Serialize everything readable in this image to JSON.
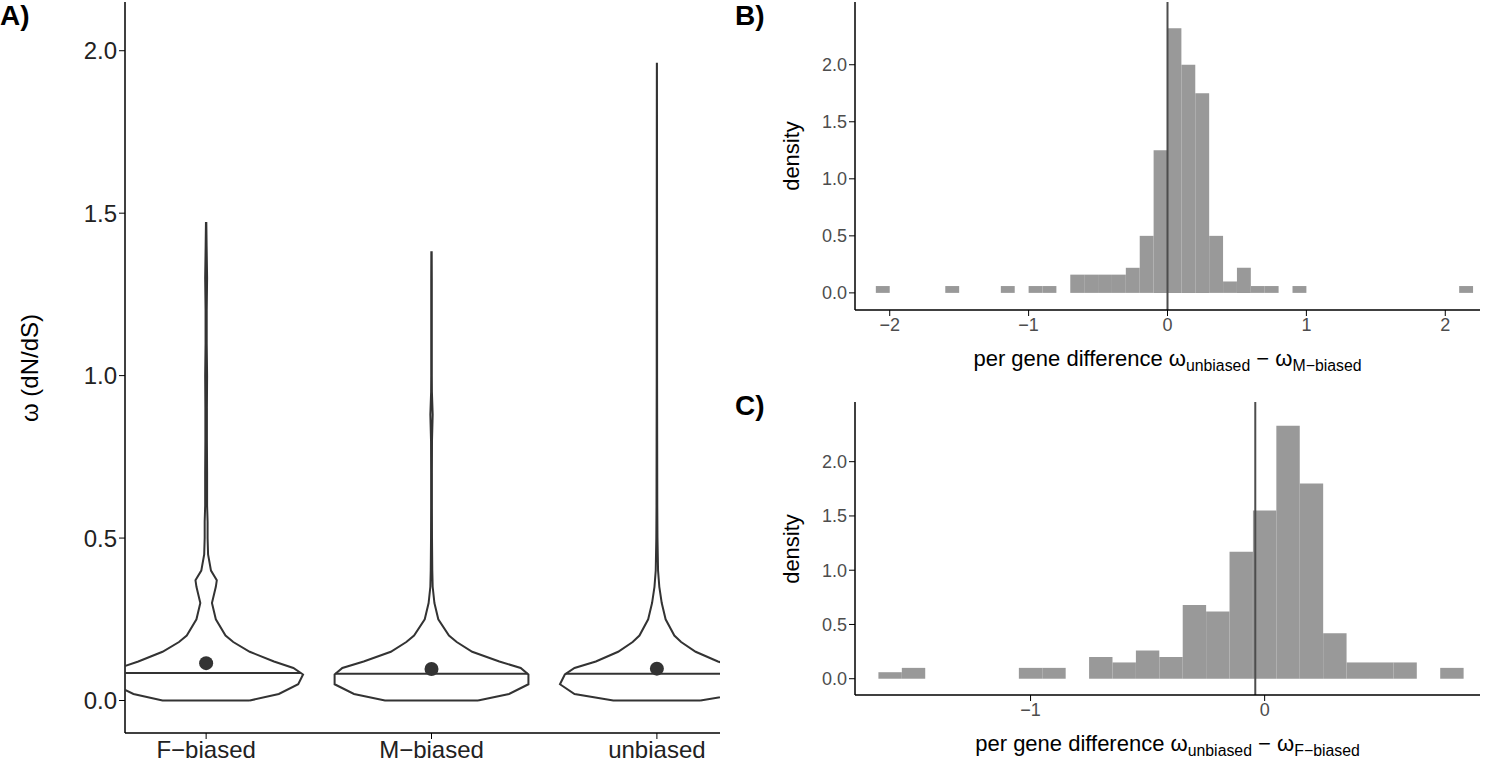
{
  "chart_data": [
    {
      "panel": "A)",
      "type": "violin",
      "ylabel": "ω (dN/dS)",
      "color": "#333333",
      "categories": [
        "F−biased",
        "M−biased",
        "unbiased"
      ],
      "ylim": [
        -0.1,
        2.15
      ],
      "yticks": [
        {
          "value": 0,
          "label": "0.0"
        },
        0.5,
        {
          "value": 1,
          "label": "1.0"
        },
        1.5,
        {
          "value": 2,
          "label": "2.0"
        }
      ],
      "violins": [
        {
          "y": [
            0,
            0.02,
            0.05,
            0.08,
            0.1,
            0.12,
            0.15,
            0.18,
            0.2,
            0.25,
            0.3,
            0.35,
            0.37,
            0.4,
            0.45,
            0.5,
            0.55,
            0.6,
            0.7,
            0.8,
            0.9,
            1.0,
            1.1,
            1.2,
            1.3,
            1.4,
            1.47
          ],
          "density": [
            4.5,
            7.5,
            9.5,
            10,
            9,
            7,
            4.5,
            2.8,
            2.0,
            1.0,
            0.6,
            1.0,
            1.1,
            0.5,
            0.2,
            0.15,
            0.15,
            0.1,
            0.1,
            0.08,
            0.08,
            0.1,
            0.06,
            0.06,
            0.1,
            0.05,
            0.02
          ],
          "mean": 0.115,
          "median": 0.085
        },
        {
          "y": [
            0,
            0.02,
            0.05,
            0.08,
            0.1,
            0.12,
            0.15,
            0.18,
            0.2,
            0.25,
            0.3,
            0.35,
            0.4,
            0.5,
            0.6,
            0.7,
            0.8,
            0.88,
            0.95,
            1.0,
            1.1,
            1.2,
            1.3,
            1.38
          ],
          "density": [
            4.8,
            8,
            10,
            10,
            9.2,
            7,
            4.2,
            2.6,
            1.8,
            0.7,
            0.3,
            0.12,
            0.08,
            0.05,
            0.04,
            0.04,
            0.05,
            0.12,
            0.04,
            0.03,
            0.03,
            0.03,
            0.03,
            0.02
          ],
          "mean": 0.097,
          "median": 0.082
        },
        {
          "y": [
            0,
            0.02,
            0.05,
            0.08,
            0.1,
            0.12,
            0.15,
            0.18,
            0.2,
            0.25,
            0.3,
            0.35,
            0.4,
            0.5,
            0.6,
            0.8,
            1.0,
            1.2,
            1.5,
            1.8,
            1.96
          ],
          "density": [
            4.5,
            8.5,
            10,
            9.5,
            8.5,
            6.3,
            4,
            2.5,
            1.8,
            0.9,
            0.5,
            0.25,
            0.12,
            0.06,
            0.04,
            0.03,
            0.02,
            0.02,
            0.015,
            0.01,
            0.005
          ],
          "mean": 0.098,
          "median": 0.082
        }
      ]
    },
    {
      "panel": "B)",
      "type": "histogram",
      "xlabel": "per gene difference ωunbiased − ωM−biased",
      "ylabel": "density",
      "color": "#999999",
      "bins": [
        -2.1,
        -2,
        -1.9,
        -1.8,
        -1.7,
        -1.6,
        -1.5,
        -1.4,
        -1.3,
        -1.2,
        -1.1,
        -1,
        -0.9,
        -0.8,
        -0.7,
        -0.6,
        -0.5,
        -0.4,
        -0.3,
        -0.2,
        -0.1,
        0,
        0.1,
        0.2,
        0.3,
        0.4,
        0.5,
        0.6,
        0.7,
        0.8,
        0.9,
        1,
        1.1,
        1.2,
        1.3,
        1.4,
        1.5,
        1.6,
        1.7,
        1.8,
        1.9,
        2,
        2.1,
        2.2
      ],
      "values": [
        0.06,
        0,
        0,
        0,
        0,
        0.06,
        0,
        0,
        0,
        0.06,
        0,
        0.06,
        0.06,
        0,
        0.16,
        0.16,
        0.16,
        0.16,
        0.22,
        0.5,
        1.25,
        2.32,
        2.0,
        1.75,
        0.5,
        0.1,
        0.22,
        0.06,
        0.06,
        0,
        0.06,
        0,
        0,
        0,
        0,
        0,
        0,
        0,
        0,
        0,
        0,
        0,
        0.06
      ],
      "xlim": [
        -2.25,
        2.25
      ],
      "xticks": [
        {
          "value": -2,
          "label": "−2"
        },
        {
          "value": -1,
          "label": "−1"
        },
        0,
        1,
        2
      ],
      "ylim": [
        -0.15,
        2.55
      ],
      "yticks": [
        {
          "value": 0,
          "label": "0.0"
        },
        0.5,
        {
          "value": 1,
          "label": "1.0"
        },
        1.5,
        {
          "value": 2,
          "label": "2.0"
        }
      ],
      "vline": 0
    },
    {
      "panel": "C)",
      "type": "histogram",
      "xlabel": "per gene difference ωunbiased − ωF−biased",
      "ylabel": "density",
      "color": "#999999",
      "bins": [
        -1.65,
        -1.55,
        -1.45,
        -1.35,
        -1.25,
        -1.15,
        -1.05,
        -0.95,
        -0.85,
        -0.75,
        -0.65,
        -0.55,
        -0.45,
        -0.35,
        -0.25,
        -0.15,
        -0.05,
        0.05,
        0.15,
        0.25,
        0.35,
        0.45,
        0.55,
        0.65,
        0.75,
        0.85
      ],
      "values": [
        0.06,
        0.1,
        0,
        0,
        0,
        0,
        0.1,
        0.1,
        0,
        0.2,
        0.15,
        0.26,
        0.2,
        0.68,
        0.62,
        1.17,
        1.55,
        2.33,
        1.8,
        0.42,
        0.15,
        0.15,
        0.15,
        0,
        0.1
      ],
      "xlim": [
        -1.75,
        0.92
      ],
      "xticks": [
        {
          "value": -1,
          "label": "−1"
        },
        0
      ],
      "ylim": [
        -0.15,
        2.55
      ],
      "yticks": [
        {
          "value": 0,
          "label": "0.0"
        },
        0.5,
        {
          "value": 1,
          "label": "1.0"
        },
        1.5,
        {
          "value": 2,
          "label": "2.0"
        }
      ],
      "vline": -0.04
    }
  ]
}
